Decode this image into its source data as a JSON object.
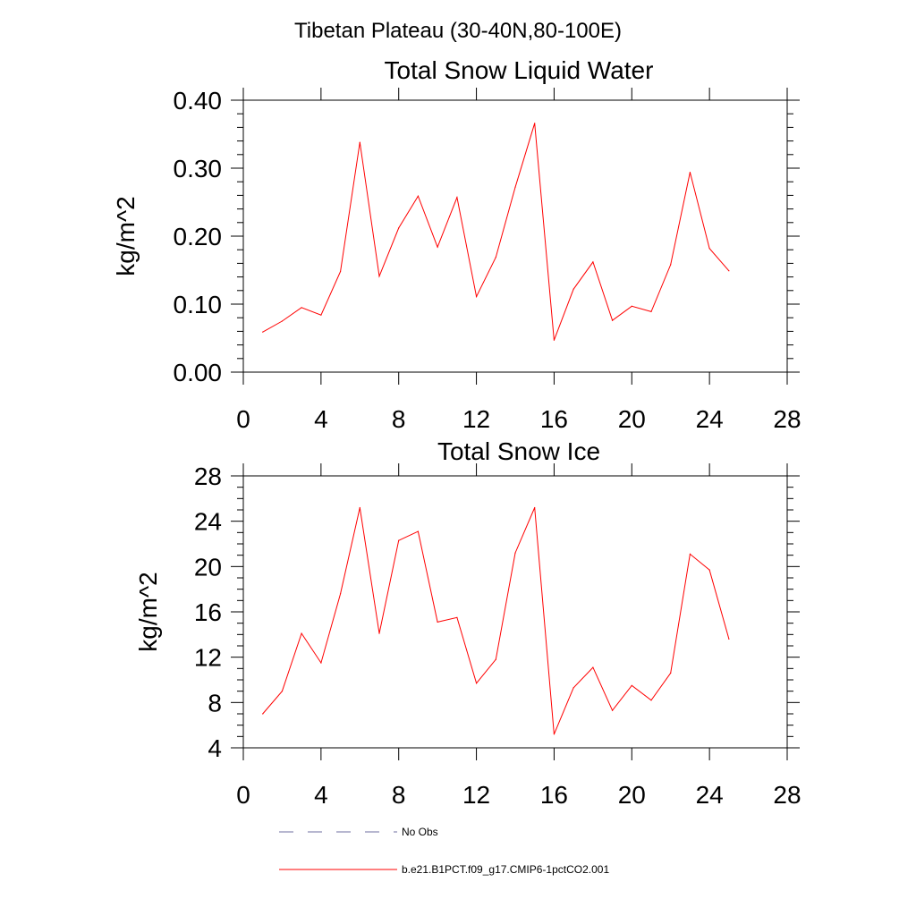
{
  "figure": {
    "title": "Tibetan Plateau (30-40N,80-100E)"
  },
  "chart_data": [
    {
      "type": "line",
      "title": "Total Snow Liquid Water",
      "xlabel": "",
      "ylabel": "kg/m^2",
      "xlim": [
        0,
        28
      ],
      "ylim": [
        0,
        0.4
      ],
      "x_ticks": [
        0,
        4,
        8,
        12,
        16,
        20,
        24,
        28
      ],
      "y_ticks": [
        0,
        0.1,
        0.2,
        0.3,
        0.4
      ],
      "y_tick_labels": [
        "0.00",
        "0.10",
        "0.20",
        "0.30",
        "0.40"
      ],
      "grid": false,
      "series": [
        {
          "name": "b.e21.B1PCT.f09_g17.CMIP6-1pctCO2.001",
          "color": "#ff0000",
          "x": [
            1,
            2,
            3,
            4,
            5,
            6,
            7,
            8,
            9,
            10,
            11,
            12,
            13,
            14,
            15,
            16,
            17,
            18,
            19,
            20,
            21,
            22,
            23,
            24,
            25
          ],
          "values": [
            0.059,
            0.075,
            0.095,
            0.084,
            0.148,
            0.338,
            0.141,
            0.212,
            0.259,
            0.184,
            0.257,
            0.111,
            0.169,
            0.272,
            0.366,
            0.047,
            0.122,
            0.162,
            0.076,
            0.097,
            0.089,
            0.158,
            0.294,
            0.182,
            0.149
          ]
        }
      ]
    },
    {
      "type": "line",
      "title": "Total Snow Ice",
      "xlabel": "",
      "ylabel": "kg/m^2",
      "xlim": [
        0,
        28
      ],
      "ylim": [
        4,
        28
      ],
      "x_ticks": [
        0,
        4,
        8,
        12,
        16,
        20,
        24,
        28
      ],
      "y_ticks": [
        4,
        8,
        12,
        16,
        20,
        24,
        28
      ],
      "y_tick_labels": [
        "4",
        "8",
        "12",
        "16",
        "20",
        "24",
        "28"
      ],
      "grid": false,
      "series": [
        {
          "name": "b.e21.B1PCT.f09_g17.CMIP6-1pctCO2.001",
          "color": "#ff0000",
          "x": [
            1,
            2,
            3,
            4,
            5,
            6,
            7,
            8,
            9,
            10,
            11,
            12,
            13,
            14,
            15,
            16,
            17,
            18,
            19,
            20,
            21,
            22,
            23,
            24,
            25
          ],
          "values": [
            7.0,
            9.0,
            14.1,
            11.5,
            17.6,
            25.2,
            14.1,
            22.3,
            23.1,
            15.1,
            15.5,
            9.7,
            11.8,
            21.2,
            25.2,
            5.2,
            9.3,
            11.1,
            7.3,
            9.5,
            8.2,
            10.6,
            21.1,
            19.7,
            13.6
          ]
        }
      ]
    }
  ],
  "legend": {
    "items": [
      {
        "label": "No Obs",
        "style": "dashed",
        "color": "#6f6fa0"
      },
      {
        "label": "b.e21.B1PCT.f09_g17.CMIP6-1pctCO2.001",
        "style": "solid",
        "color": "#ff0000"
      }
    ]
  }
}
